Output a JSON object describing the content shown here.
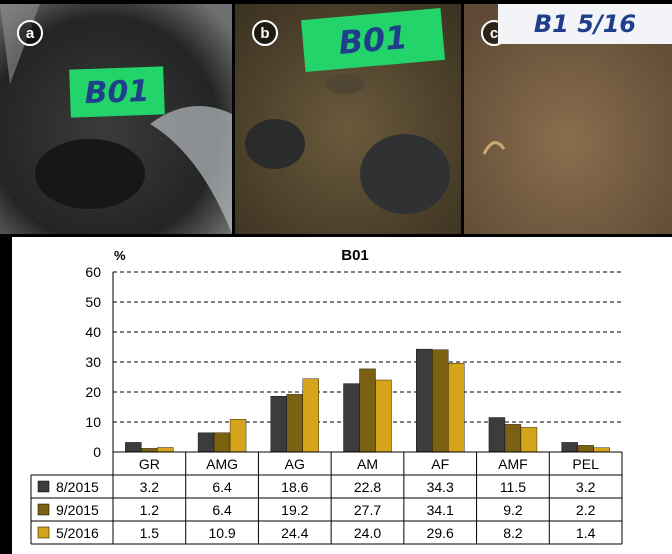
{
  "photos": [
    {
      "badge": "a",
      "label": "B01",
      "label_color": "#22d46a"
    },
    {
      "badge": "b",
      "label": "B01",
      "label_color": "#22d46a"
    },
    {
      "badge": "c",
      "label": "B1 5/16",
      "label_color": "#f2f4f8"
    }
  ],
  "chart_data": {
    "type": "bar",
    "title": "B01",
    "ylabel": "%",
    "xlabel": "",
    "ylim": [
      0,
      60
    ],
    "yticks": [
      0,
      10,
      20,
      30,
      40,
      50,
      60
    ],
    "grid": true,
    "legend": "table-left",
    "categories": [
      "GR",
      "AMG",
      "AG",
      "AM",
      "AF",
      "AMF",
      "PEL"
    ],
    "series": [
      {
        "name": "8/2015",
        "color": "#3c3c3c",
        "values": [
          3.2,
          6.4,
          18.6,
          22.8,
          34.3,
          11.5,
          3.2
        ]
      },
      {
        "name": "9/2015",
        "color": "#7a6212",
        "values": [
          1.2,
          6.4,
          19.2,
          27.7,
          34.1,
          9.2,
          2.2
        ]
      },
      {
        "name": "5/2016",
        "color": "#d6a41a",
        "values": [
          1.5,
          10.9,
          24.4,
          24.0,
          29.6,
          8.2,
          1.4
        ]
      }
    ]
  }
}
